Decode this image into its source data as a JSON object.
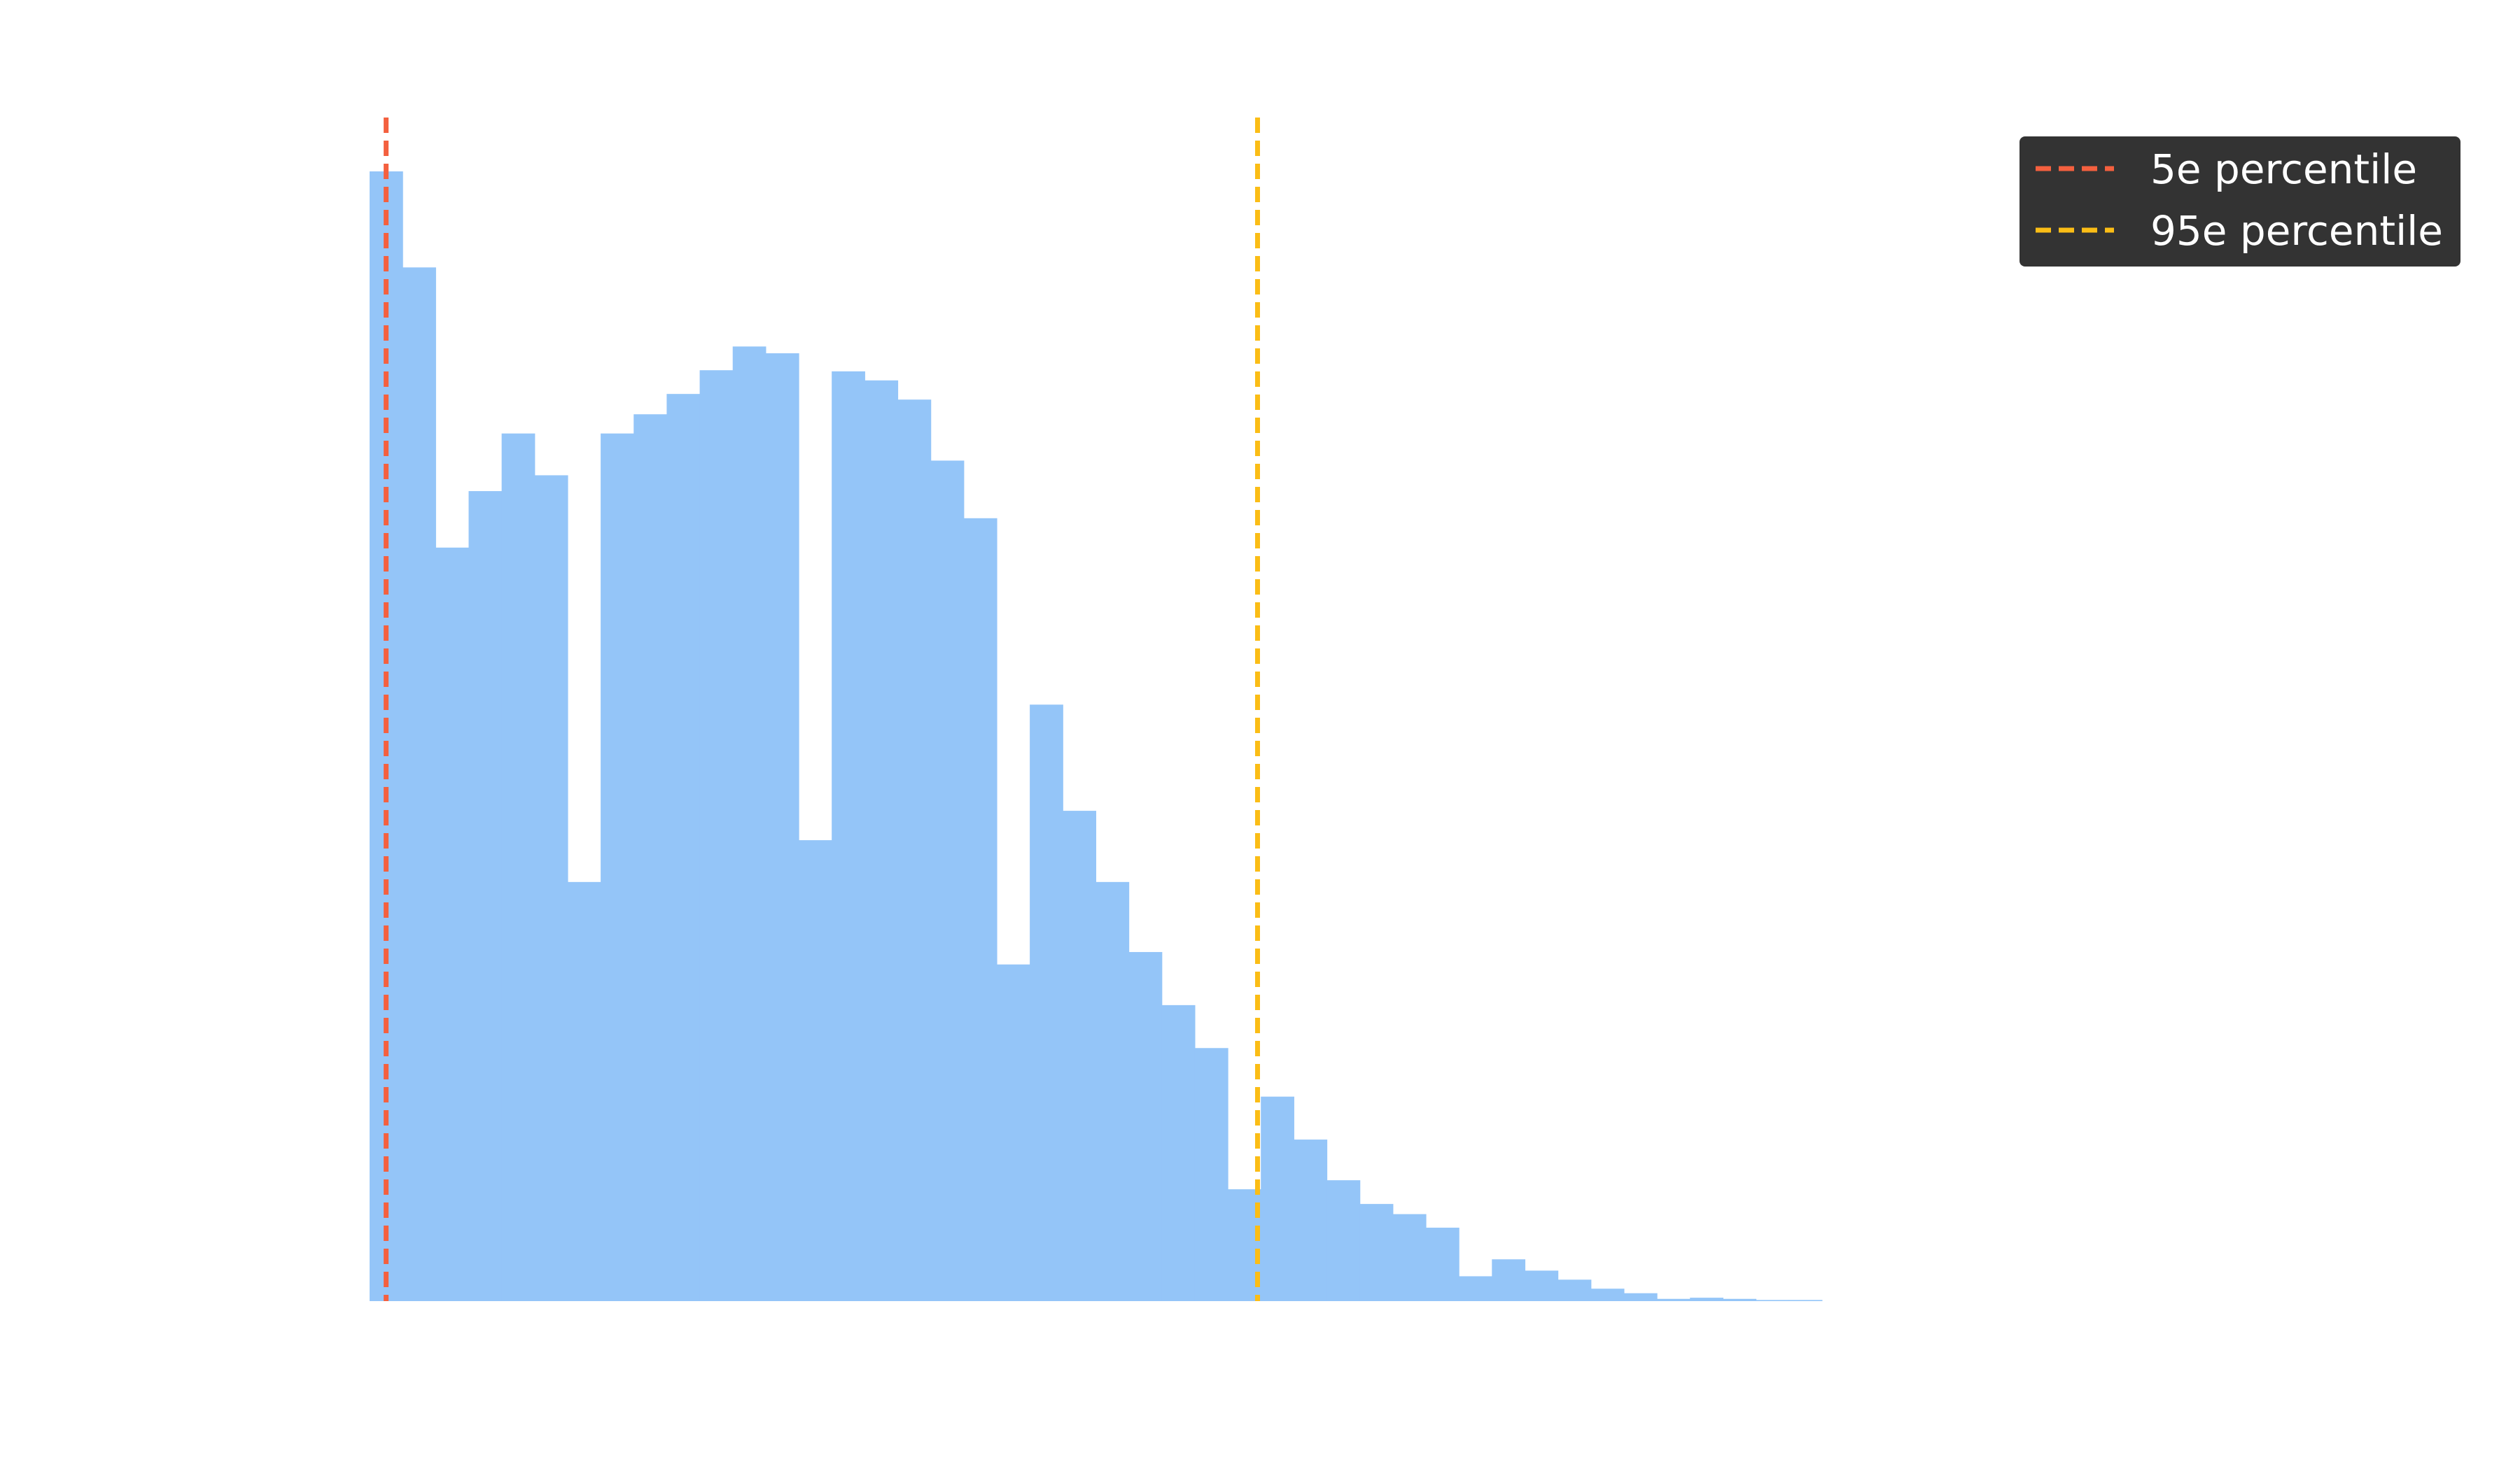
{
  "chart_data": {
    "type": "histogram",
    "bar_color": "#94c5f8",
    "bins": 45,
    "values": [
      1000,
      915,
      667,
      717,
      768,
      731,
      371,
      768,
      785,
      803,
      824,
      845,
      839,
      408,
      823,
      815,
      798,
      744,
      693,
      298,
      528,
      434,
      371,
      309,
      262,
      224,
      99,
      181,
      143,
      107,
      86,
      77,
      65,
      22,
      37,
      27,
      19,
      11,
      7,
      2,
      3,
      2,
      1,
      1,
      0
    ],
    "percentiles": [
      {
        "label": "5e percentile",
        "bin_position": 0.5,
        "color": "#f4603f"
      },
      {
        "label": "95e percentile",
        "bin_position": 26.9,
        "color": "#fbbd16"
      }
    ],
    "legend": {
      "location": "top-right",
      "background": "#333333",
      "entries": [
        "5e percentile",
        "95e percentile"
      ]
    }
  }
}
